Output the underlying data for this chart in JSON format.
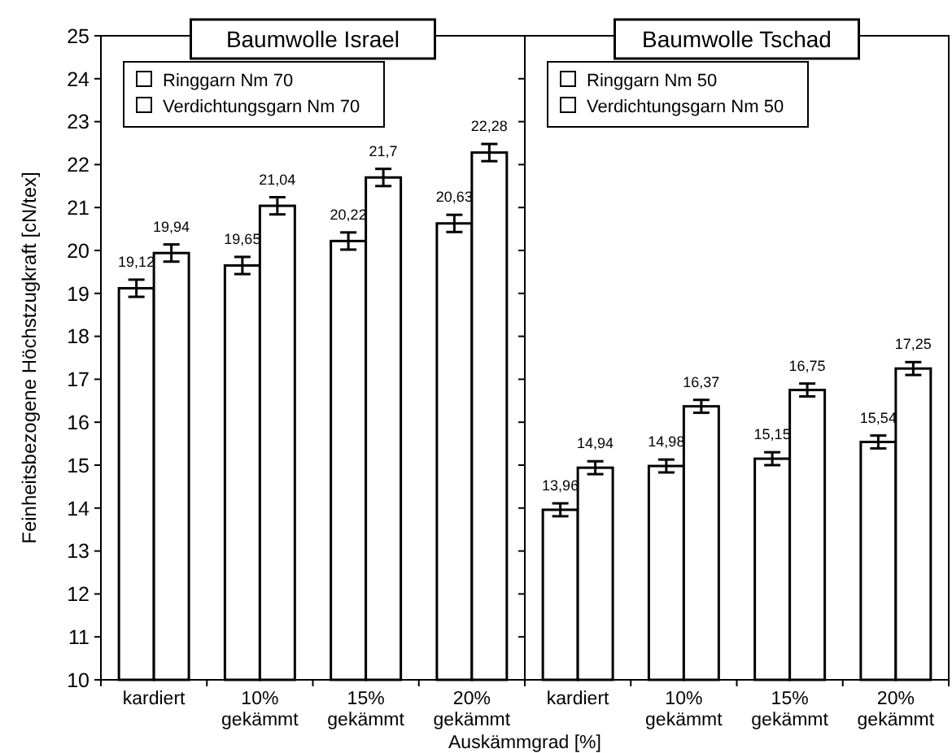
{
  "chart_data": [
    {
      "type": "bar",
      "title": "Baumwolle Israel",
      "ylabel": "Feinheitsbezogene Höchstzugkraft [cN/tex]",
      "xlabel": "Auskämmgrad [%]",
      "categories": [
        "kardiert",
        "10% gekämmt",
        "15% gekämmt",
        "20% gekämmt"
      ],
      "ylim": [
        10,
        25
      ],
      "yticks": [
        10,
        11,
        12,
        13,
        14,
        15,
        16,
        17,
        18,
        19,
        20,
        21,
        22,
        23,
        24,
        25
      ],
      "grid": false,
      "legend": "top left",
      "series": [
        {
          "name": "Ringgarn Nm 70",
          "color": "#ffffff",
          "values": [
            19.12,
            19.65,
            20.22,
            20.63
          ],
          "errors": [
            0.2,
            0.2,
            0.2,
            0.2
          ],
          "value_labels": [
            "19,12",
            "19,65",
            "20,22",
            "20,63"
          ]
        },
        {
          "name": "Verdichtungsgarn Nm 70",
          "color": "#ffffff",
          "values": [
            19.94,
            21.04,
            21.7,
            22.28
          ],
          "errors": [
            0.2,
            0.2,
            0.2,
            0.2
          ],
          "value_labels": [
            "19,94",
            "21,04",
            "21,7",
            "22,28"
          ]
        }
      ]
    },
    {
      "type": "bar",
      "title": "Baumwolle Tschad",
      "categories": [
        "kardiert",
        "10% gekämmt",
        "15% gekämmt",
        "20% gekämmt"
      ],
      "ylim": [
        10,
        25
      ],
      "yticks": [
        10,
        11,
        12,
        13,
        14,
        15,
        16,
        17,
        18,
        19,
        20,
        21,
        22,
        23,
        24,
        25
      ],
      "tick_labels": "x",
      "grid": false,
      "legend": "top left",
      "series": [
        {
          "name": "Ringgarn Nm 50",
          "color": "#ffffff",
          "values": [
            13.96,
            14.98,
            15.15,
            15.54
          ],
          "errors": [
            0.15,
            0.15,
            0.15,
            0.15
          ],
          "value_labels": [
            "13,96",
            "14,98",
            "15,15",
            "15,54"
          ]
        },
        {
          "name": "Verdichtungsgarn Nm 50",
          "color": "#ffffff",
          "values": [
            14.94,
            16.37,
            16.75,
            17.25
          ],
          "errors": [
            0.15,
            0.15,
            0.15,
            0.15
          ],
          "value_labels": [
            "14,94",
            "16,37",
            "16,75",
            "17,25"
          ]
        }
      ]
    }
  ]
}
